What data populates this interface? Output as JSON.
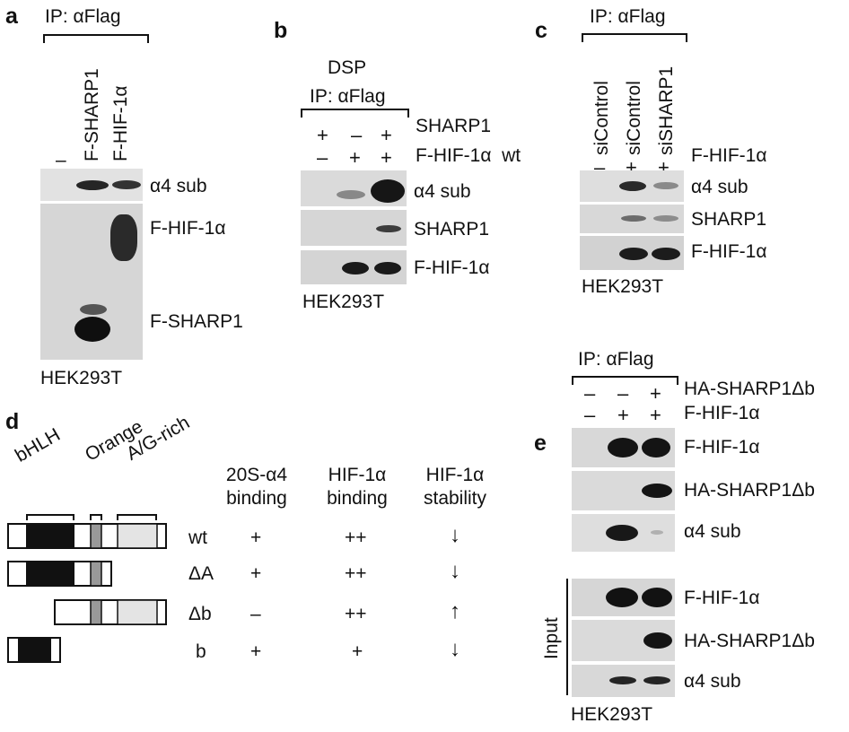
{
  "panel_a": {
    "label": "a",
    "ip": "IP: αFlag",
    "lanes": [
      "–",
      "F-SHARP1",
      "F-HIF-1α"
    ],
    "row_labels": [
      "α4 sub",
      "F-HIF-1α",
      "F-SHARP1"
    ],
    "cell_line": "HEK293T"
  },
  "panel_b": {
    "label": "b",
    "crosslinker": "DSP",
    "ip": "IP: αFlag",
    "cond1_label": "SHARP1",
    "cond1": [
      "+",
      "–",
      "+"
    ],
    "cond2_label": "F-HIF-1α  wt",
    "cond2": [
      "–",
      "+",
      "+"
    ],
    "row_labels": [
      "α4 sub",
      "SHARP1",
      "F-HIF-1α"
    ],
    "cell_line": "HEK293T"
  },
  "panel_c": {
    "label": "c",
    "ip": "IP: αFlag",
    "lanes": [
      "siControl",
      "siControl",
      "siSHARP1"
    ],
    "signs": [
      "–",
      "+",
      "+"
    ],
    "sign_label": "F-HIF-1α",
    "row_labels": [
      "α4 sub",
      "SHARP1",
      "F-HIF-1α"
    ],
    "cell_line": "HEK293T"
  },
  "panel_d": {
    "label": "d",
    "domains": [
      "bHLH",
      "Orange",
      "A/G-rich"
    ],
    "col1": [
      "20S-α4",
      "binding"
    ],
    "col2": [
      "HIF-1α",
      "binding"
    ],
    "col3": [
      "HIF-1α",
      "stability"
    ],
    "rows": [
      {
        "name": "wt",
        "binding20s": "+",
        "hif_binding": "++",
        "stability": "↓"
      },
      {
        "name": "ΔA",
        "binding20s": "+",
        "hif_binding": "++",
        "stability": "↓"
      },
      {
        "name": "Δb",
        "binding20s": "–",
        "hif_binding": "++",
        "stability": "↑"
      },
      {
        "name": "b",
        "binding20s": "+",
        "hif_binding": "+",
        "stability": "↓"
      }
    ]
  },
  "panel_e": {
    "label": "e",
    "ip": "IP: αFlag",
    "cond1_label": "HA-SHARP1Δb",
    "cond1": [
      "–",
      "–",
      "+"
    ],
    "cond2_label": "F-HIF-1α",
    "cond2": [
      "–",
      "+",
      "+"
    ],
    "row_labels": [
      "F-HIF-1α",
      "HA-SHARP1Δb",
      "α4 sub"
    ],
    "input_label": "Input",
    "input_row_labels": [
      "F-HIF-1α",
      "HA-SHARP1Δb",
      "α4 sub"
    ],
    "cell_line": "HEK293T"
  }
}
